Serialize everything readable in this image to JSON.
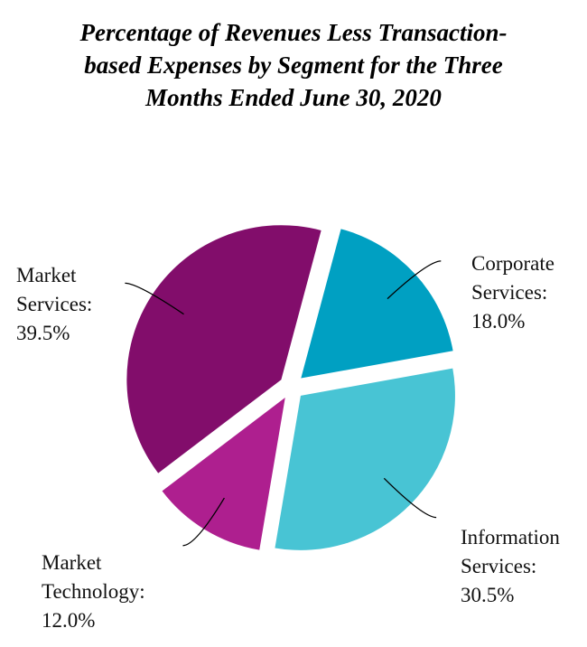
{
  "chart_data": {
    "type": "pie",
    "title_lines": [
      "Percentage of Revenues Less Transaction-",
      "based Expenses by Segment for the Three",
      "Months Ended June 30, 2020"
    ],
    "slices": [
      {
        "id": "corporate-services",
        "label_lines": [
          "Corporate",
          "Services:",
          "18.0%"
        ],
        "value": 18.0,
        "color": "#00A0C2"
      },
      {
        "id": "information-services",
        "label_lines": [
          "Information",
          "Services:",
          "30.5%"
        ],
        "value": 30.5,
        "color": "#48C4D4"
      },
      {
        "id": "market-technology",
        "label_lines": [
          "Market",
          "Technology:",
          "12.0%"
        ],
        "value": 12.0,
        "color": "#AE1F8F"
      },
      {
        "id": "market-services",
        "label_lines": [
          "Market",
          "Services:",
          "39.5%"
        ],
        "value": 39.5,
        "color": "#820D6B"
      }
    ],
    "start_angle_deg": 15,
    "direction": "clockwise",
    "exploded": true,
    "legend": "none"
  }
}
